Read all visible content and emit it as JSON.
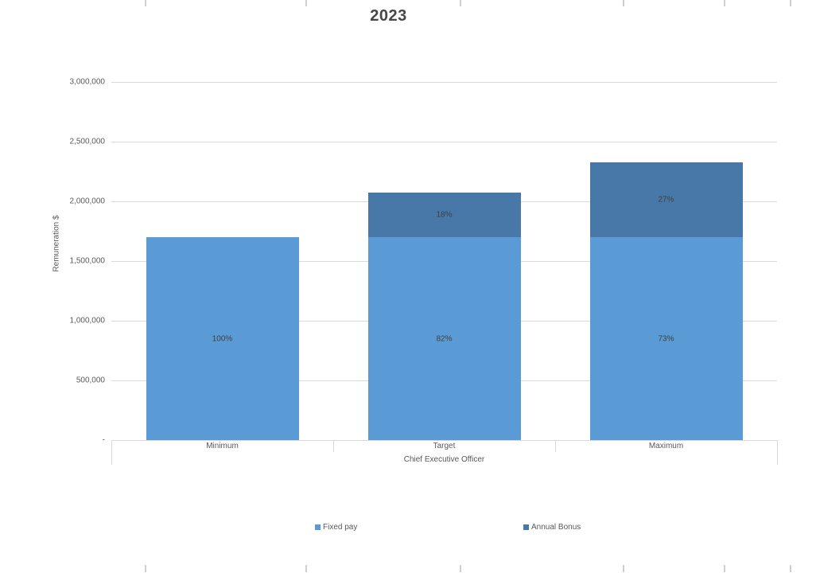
{
  "chart": {
    "title": "2023",
    "y_axis_title": "Remuneration $",
    "x_axis_group_label": "Chief Executive Officer"
  },
  "y_axis": {
    "ticks": [
      {
        "value": 3000000,
        "label": "3,000,000"
      },
      {
        "value": 2500000,
        "label": "2,500,000"
      },
      {
        "value": 2000000,
        "label": "2,000,000"
      },
      {
        "value": 1500000,
        "label": "1,500,000"
      },
      {
        "value": 1000000,
        "label": "1,000,000"
      },
      {
        "value": 500000,
        "label": "500,000"
      },
      {
        "value": 0,
        "label": "-"
      }
    ]
  },
  "legend": {
    "items": [
      {
        "label": "Fixed pay",
        "color": "#5b9bd5"
      },
      {
        "label": "Annual Bonus",
        "color": "#4878a7"
      }
    ]
  },
  "colors": {
    "fixed_pay": "#5b9bd5",
    "annual_bonus": "#4878a7",
    "gridline": "#d9d9d9",
    "axis_text": "#595959",
    "data_label_text": "#3f3f3f"
  },
  "chart_data": {
    "type": "bar",
    "stacked": true,
    "title": "2023",
    "xlabel": "Chief Executive Officer",
    "ylabel": "Remuneration $",
    "ylim": [
      0,
      3000000
    ],
    "grid": true,
    "legend_position": "bottom",
    "categories": [
      "Minimum",
      "Target",
      "Maximum"
    ],
    "series": [
      {
        "name": "Fixed pay",
        "color": "#5b9bd5",
        "values": [
          1700000,
          1700000,
          1700000
        ],
        "labels": [
          "100%",
          "82%",
          "73%"
        ]
      },
      {
        "name": "Annual Bonus",
        "color": "#4878a7",
        "values": [
          0,
          375000,
          630000
        ],
        "labels": [
          "",
          "18%",
          "27%"
        ]
      }
    ],
    "totals": [
      1700000,
      2075000,
      2330000
    ]
  }
}
